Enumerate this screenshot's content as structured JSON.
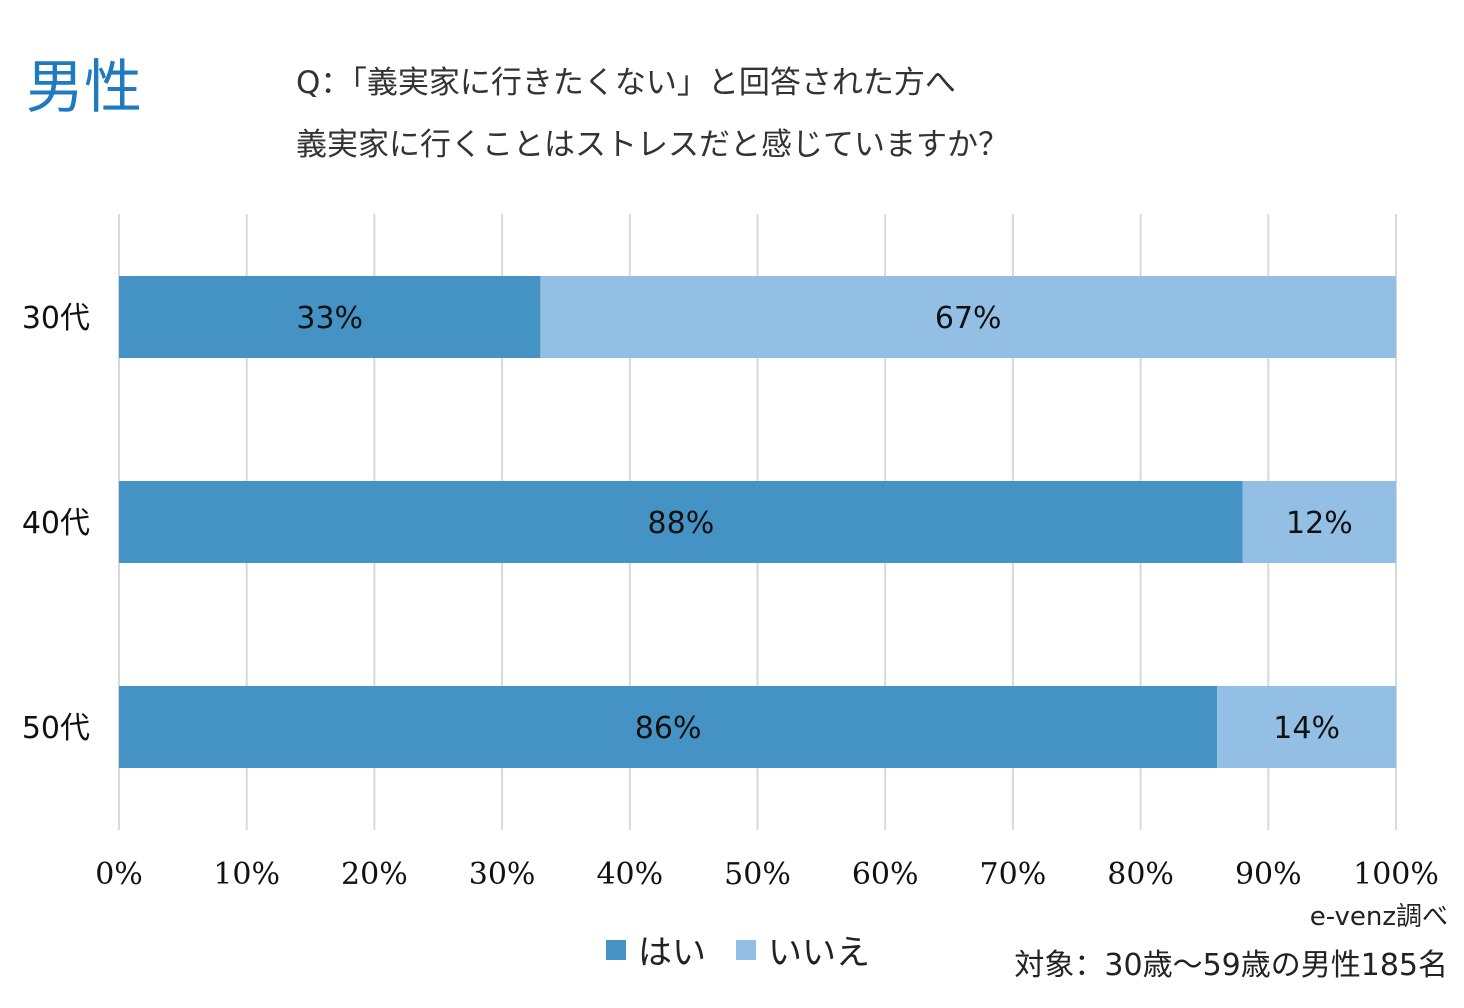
{
  "header": {
    "gender_label": "男性",
    "question_line1": "Q：「義実家に行きたくない」と回答された方へ",
    "question_line2": "義実家に行くことはストレスだと感じていますか？"
  },
  "chart_data": {
    "type": "bar",
    "orientation": "horizontal",
    "stacked": true,
    "categories": [
      "30代",
      "40代",
      "50代"
    ],
    "series": [
      {
        "name": "はい",
        "values": [
          33,
          88,
          86
        ],
        "color": "#4592c4"
      },
      {
        "name": "いいえ",
        "values": [
          67,
          12,
          14
        ],
        "color": "#94bfe5"
      }
    ],
    "data_labels": [
      [
        "33%",
        "88%",
        "86%"
      ],
      [
        "67%",
        "12%",
        "14%"
      ]
    ],
    "x_ticks": [
      "0%",
      "10%",
      "20%",
      "30%",
      "40%",
      "50%",
      "60%",
      "70%",
      "80%",
      "90%",
      "100%"
    ],
    "xlim": [
      0,
      100
    ],
    "grid": "vertical",
    "legend_position": "bottom"
  },
  "footer": {
    "source": "e-venz調べ",
    "note": "対象：30歳～59歳の男性185名"
  }
}
